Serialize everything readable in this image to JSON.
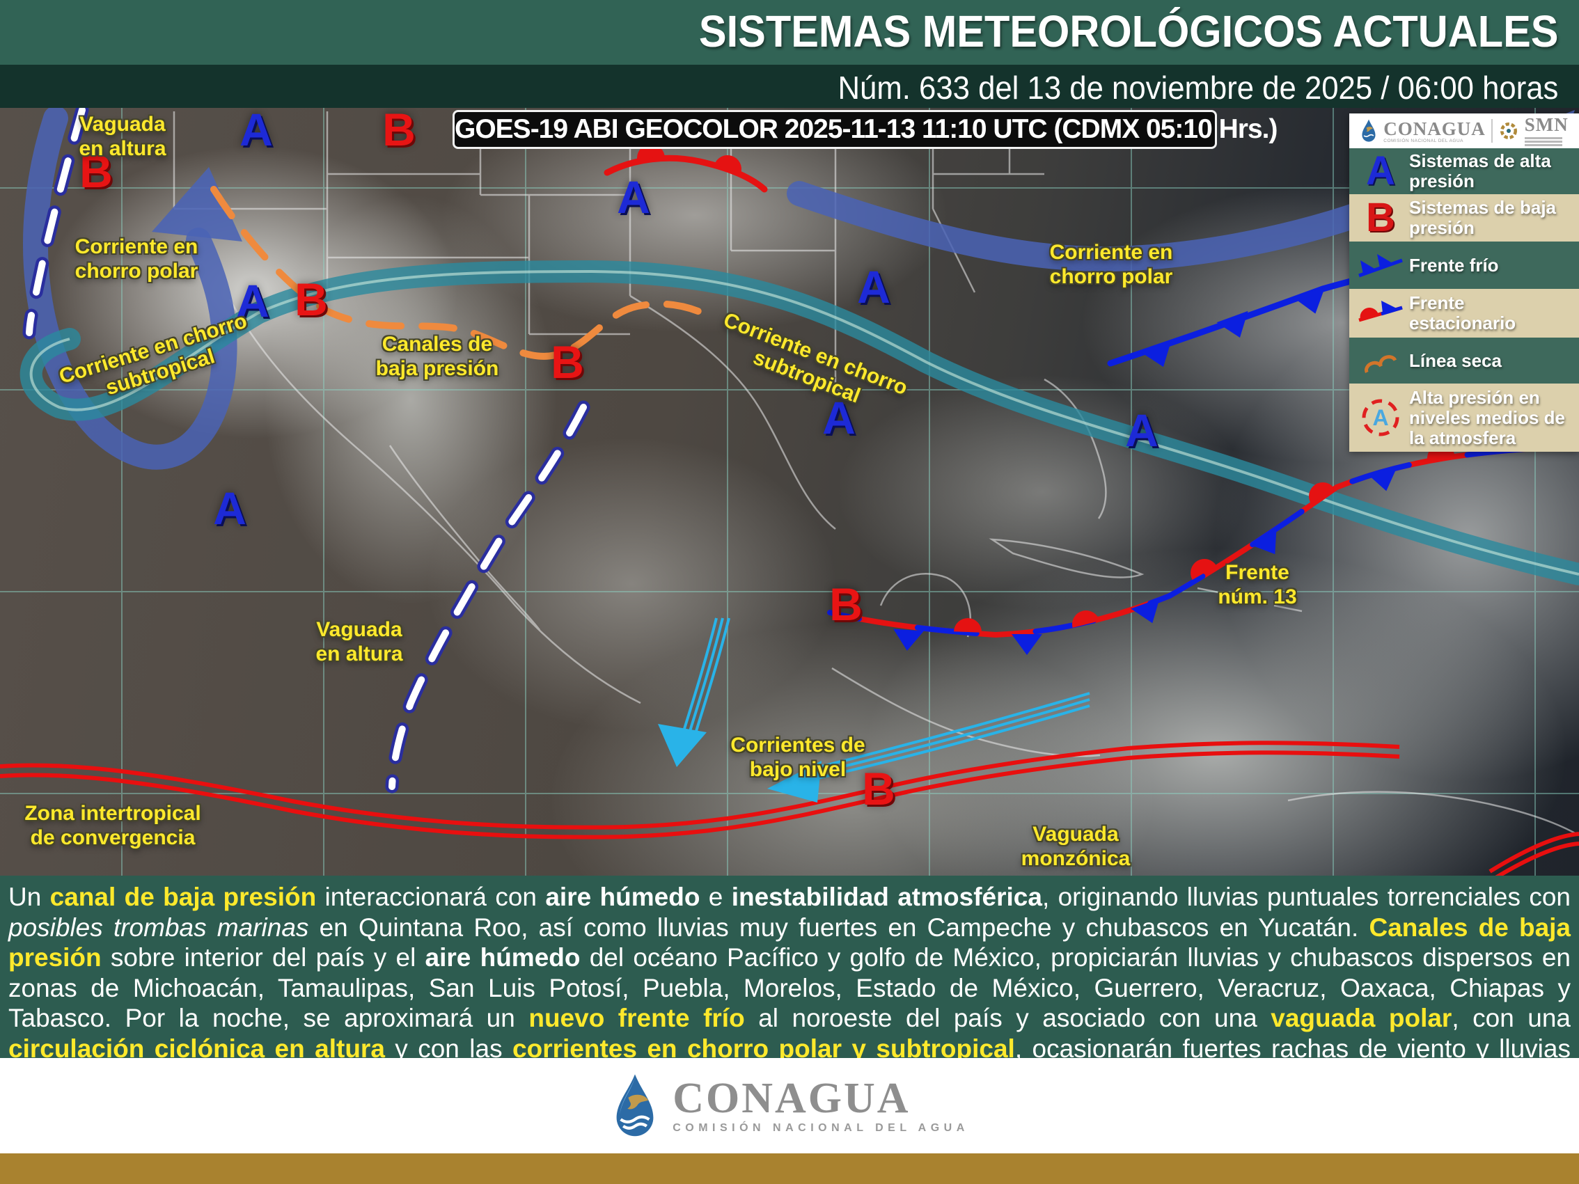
{
  "header": {
    "title": "SISTEMAS METEOROLÓGICOS ACTUALES",
    "subtitle": "Núm. 633 del 13 de noviembre de 2025 / 06:00 horas"
  },
  "map": {
    "caption": "GOES-19 ABI GEOCOLOR 2025-11-13 11:10 UTC (CDMX  05:10 Hrs.)",
    "letter_a": "A",
    "letter_b": "B",
    "labels": {
      "vaguada_nw": "Vaguada\nen altura",
      "chorro_polar_w": "Corriente en\nchorro polar",
      "chorro_subtropical_w": "Corriente en chorro\nsubtropical",
      "canales_baja": "Canales de\nbaja presión",
      "chorro_subtropical_e": "Corriente en chorro\nsubtropical",
      "chorro_polar_e": "Corriente en\nchorro polar",
      "vaguada_c": "Vaguada\nen altura",
      "frente_13": "Frente\nnúm. 13",
      "corrientes_bajo_nivel": "Corrientes de\nbajo nivel",
      "zona_itcz": "Zona intertropical\nde convergencia",
      "vaguada_monzonica": "Vaguada\nmonzónica"
    }
  },
  "legend": {
    "conagua": "CONAGUA",
    "conagua_sub": "COMISIÓN NACIONAL DEL AGUA",
    "smn": "SMN",
    "items": [
      {
        "symbol": "high-pressure-a",
        "label": "Sistemas de alta presión"
      },
      {
        "symbol": "low-pressure-b",
        "label": "Sistemas de baja presión"
      },
      {
        "symbol": "cold-front",
        "label": "Frente frío"
      },
      {
        "symbol": "stationary-front",
        "label": "Frente estacionario"
      },
      {
        "symbol": "dry-line",
        "label": "Línea seca"
      },
      {
        "symbol": "mid-level-high",
        "label": "Alta presión en niveles medios de la atmosfera"
      }
    ]
  },
  "summary": {
    "segments": [
      {
        "t": "Un ",
        "s": "n"
      },
      {
        "t": "canal de baja presión",
        "s": "y"
      },
      {
        "t": " interaccionará con ",
        "s": "n"
      },
      {
        "t": "aire húmedo",
        "s": "b"
      },
      {
        "t": " e ",
        "s": "n"
      },
      {
        "t": "inestabilidad atmosférica",
        "s": "b"
      },
      {
        "t": ", originando lluvias puntuales torrenciales con ",
        "s": "n"
      },
      {
        "t": "posibles trombas marinas",
        "s": "i"
      },
      {
        "t": " en Quintana Roo, así como lluvias muy fuertes en Campeche y chubascos en Yucatán. ",
        "s": "n"
      },
      {
        "t": "Canales de baja presión",
        "s": "y"
      },
      {
        "t": " sobre interior del país y el ",
        "s": "n"
      },
      {
        "t": "aire húmedo",
        "s": "b"
      },
      {
        "t": " del océano Pacífico y golfo de México, propiciarán lluvias y chubascos dispersos en zonas de Michoacán, Tamaulipas, San Luis Potosí, Puebla, Morelos, Estado de México, Guerrero, Veracruz, Oaxaca, Chiapas y Tabasco. Por la noche, se aproximará un ",
        "s": "n"
      },
      {
        "t": "nuevo frente frío",
        "s": "y"
      },
      {
        "t": " al noroeste del país y asociado con una ",
        "s": "n"
      },
      {
        "t": "vaguada polar",
        "s": "y"
      },
      {
        "t": ", con una ",
        "s": "n"
      },
      {
        "t": "circulación ciclónica en altura",
        "s": "y"
      },
      {
        "t": " y con las ",
        "s": "n"
      },
      {
        "t": "corrientes en chorro polar y subtropical",
        "s": "y"
      },
      {
        "t": ", ocasionarán fuertes rachas de viento y lluvias aisladas en Baja California.",
        "s": "n"
      }
    ]
  },
  "footer": {
    "org": "CONAGUA",
    "org_subtitle": "COMISIÓN NACIONAL DEL AGUA"
  },
  "colors": {
    "header_green": "#316355",
    "dark_green": "#14332c",
    "summary_green": "#2d5c50",
    "gold_bar": "#a9822f",
    "legend_green": "#3e695c",
    "legend_tan": "#dcd0ac",
    "label_yellow": "#ffe92c",
    "high_pressure_blue": "#1d2ad6",
    "low_pressure_red": "#e81414",
    "polar_jet_blue": "#4a63b5",
    "subtropical_jet_teal": "#2a8a9e",
    "low_level_cyan": "#29b3e8",
    "dry_line_orange": "#ef8a3e"
  }
}
